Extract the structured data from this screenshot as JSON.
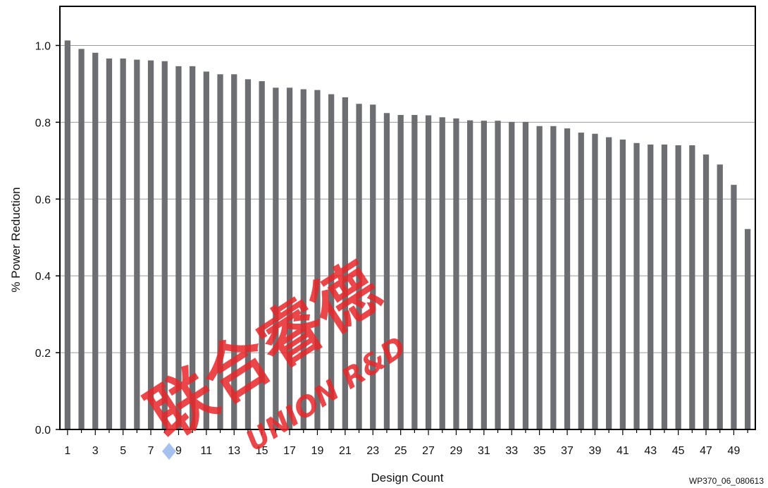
{
  "chart_data": {
    "type": "bar",
    "xlabel": "Design Count",
    "ylabel": "% Power Reduction",
    "ylim": [
      0,
      1.1
    ],
    "yticks": [
      0.0,
      0.2,
      0.4,
      0.6,
      0.8,
      1.0
    ],
    "ytick_labels": [
      "0.0",
      "0.2",
      "0.4",
      "0.6",
      "0.8",
      "1.0"
    ],
    "categories": [
      "1",
      "2",
      "3",
      "4",
      "5",
      "6",
      "7",
      "8",
      "9",
      "10",
      "11",
      "12",
      "13",
      "14",
      "15",
      "16",
      "17",
      "18",
      "19",
      "20",
      "21",
      "22",
      "23",
      "24",
      "25",
      "26",
      "27",
      "28",
      "29",
      "30",
      "31",
      "32",
      "33",
      "34",
      "35",
      "36",
      "37",
      "38",
      "39",
      "40",
      "41",
      "42",
      "43",
      "44",
      "45",
      "46",
      "47",
      "48",
      "49",
      "50"
    ],
    "xtick_labels": [
      "1",
      "3",
      "5",
      "7",
      "9",
      "11",
      "13",
      "15",
      "17",
      "19",
      "21",
      "23",
      "25",
      "27",
      "29",
      "31",
      "33",
      "35",
      "37",
      "39",
      "41",
      "43",
      "45",
      "47",
      "49"
    ],
    "values": [
      1.013,
      0.991,
      0.981,
      0.966,
      0.966,
      0.963,
      0.961,
      0.959,
      0.946,
      0.946,
      0.932,
      0.925,
      0.925,
      0.912,
      0.907,
      0.89,
      0.89,
      0.886,
      0.884,
      0.873,
      0.865,
      0.848,
      0.846,
      0.824,
      0.819,
      0.819,
      0.818,
      0.813,
      0.81,
      0.805,
      0.804,
      0.804,
      0.801,
      0.801,
      0.79,
      0.79,
      0.784,
      0.773,
      0.77,
      0.761,
      0.755,
      0.746,
      0.742,
      0.742,
      0.74,
      0.74,
      0.716,
      0.69,
      0.637,
      0.522
    ],
    "grid": true,
    "bar_color": "#6d6e71"
  },
  "footer": {
    "figure_id": "WP370_06_080613"
  },
  "watermark": {
    "text": "联合睿德",
    "subtext": "UNION R&D"
  }
}
